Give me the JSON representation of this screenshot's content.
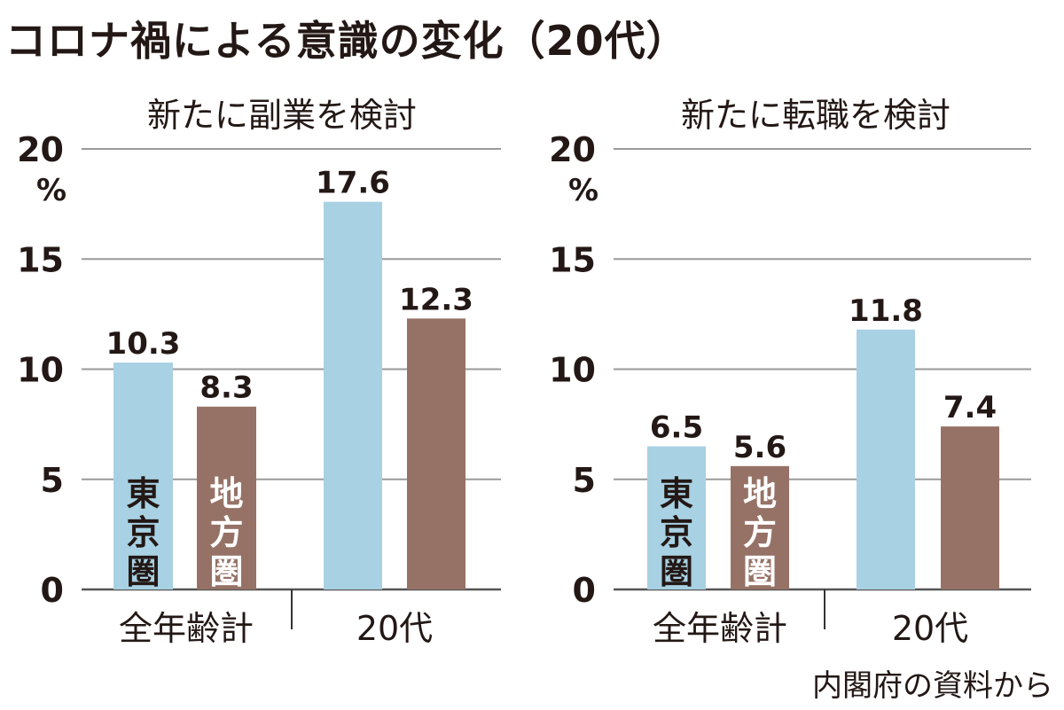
{
  "title": "コロナ禍による意識の変化（20代）",
  "source": "内閣府の資料から",
  "colors": {
    "tokyo": "#a8d1e3",
    "regional": "#967266",
    "grid": "#9a9a9a",
    "text": "#231815"
  },
  "chart_data": [
    {
      "type": "bar",
      "title": "新たに副業を検討",
      "ylabel": "%",
      "ylim": [
        0,
        20
      ],
      "yticks": [
        0,
        5,
        10,
        15,
        20
      ],
      "categories": [
        "全年齢計",
        "20代"
      ],
      "series": [
        {
          "name": "東京圏",
          "values": [
            10.3,
            17.6
          ]
        },
        {
          "name": "地方圏",
          "values": [
            8.3,
            12.3
          ]
        }
      ],
      "grid": true
    },
    {
      "type": "bar",
      "title": "新たに転職を検討",
      "ylabel": "%",
      "ylim": [
        0,
        20
      ],
      "yticks": [
        0,
        5,
        10,
        15,
        20
      ],
      "categories": [
        "全年齢計",
        "20代"
      ],
      "series": [
        {
          "name": "東京圏",
          "values": [
            6.5,
            11.8
          ]
        },
        {
          "name": "地方圏",
          "values": [
            5.6,
            7.4
          ]
        }
      ],
      "grid": true
    }
  ]
}
